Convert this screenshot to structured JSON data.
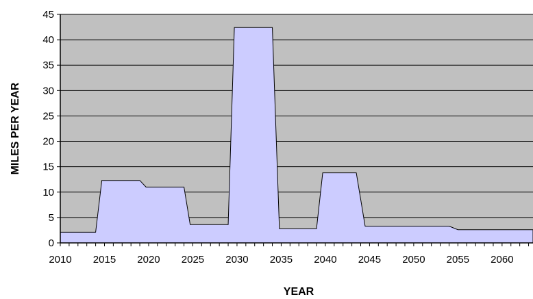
{
  "chart_data": {
    "type": "area",
    "xlabel": "YEAR",
    "ylabel": "MILES PER YEAR",
    "xlim": [
      2010,
      2063.5
    ],
    "ylim": [
      0,
      45
    ],
    "x_ticks": [
      2010,
      2015,
      2020,
      2025,
      2030,
      2035,
      2040,
      2045,
      2050,
      2055,
      2060
    ],
    "y_ticks": [
      0,
      5,
      10,
      15,
      20,
      25,
      30,
      35,
      40,
      45
    ],
    "grid": true,
    "legend": "none",
    "series": [
      {
        "x": [
          2010,
          2014,
          2014.7,
          2019,
          2019.7,
          2024,
          2024.7,
          2029,
          2029.7,
          2034,
          2034.8,
          2039,
          2039.7,
          2043.5,
          2044.5,
          2054,
          2055,
          2063.5
        ],
        "values": [
          2.1,
          2.1,
          12.3,
          12.3,
          11.0,
          11.0,
          3.6,
          3.6,
          42.4,
          42.4,
          2.8,
          2.8,
          13.8,
          13.8,
          3.3,
          3.3,
          2.6,
          2.6
        ]
      }
    ],
    "colors": {
      "plot_background": "#c0c0c0",
      "area_fill": "#ccccff",
      "area_stroke": "#000000",
      "gridline": "#000000"
    }
  }
}
